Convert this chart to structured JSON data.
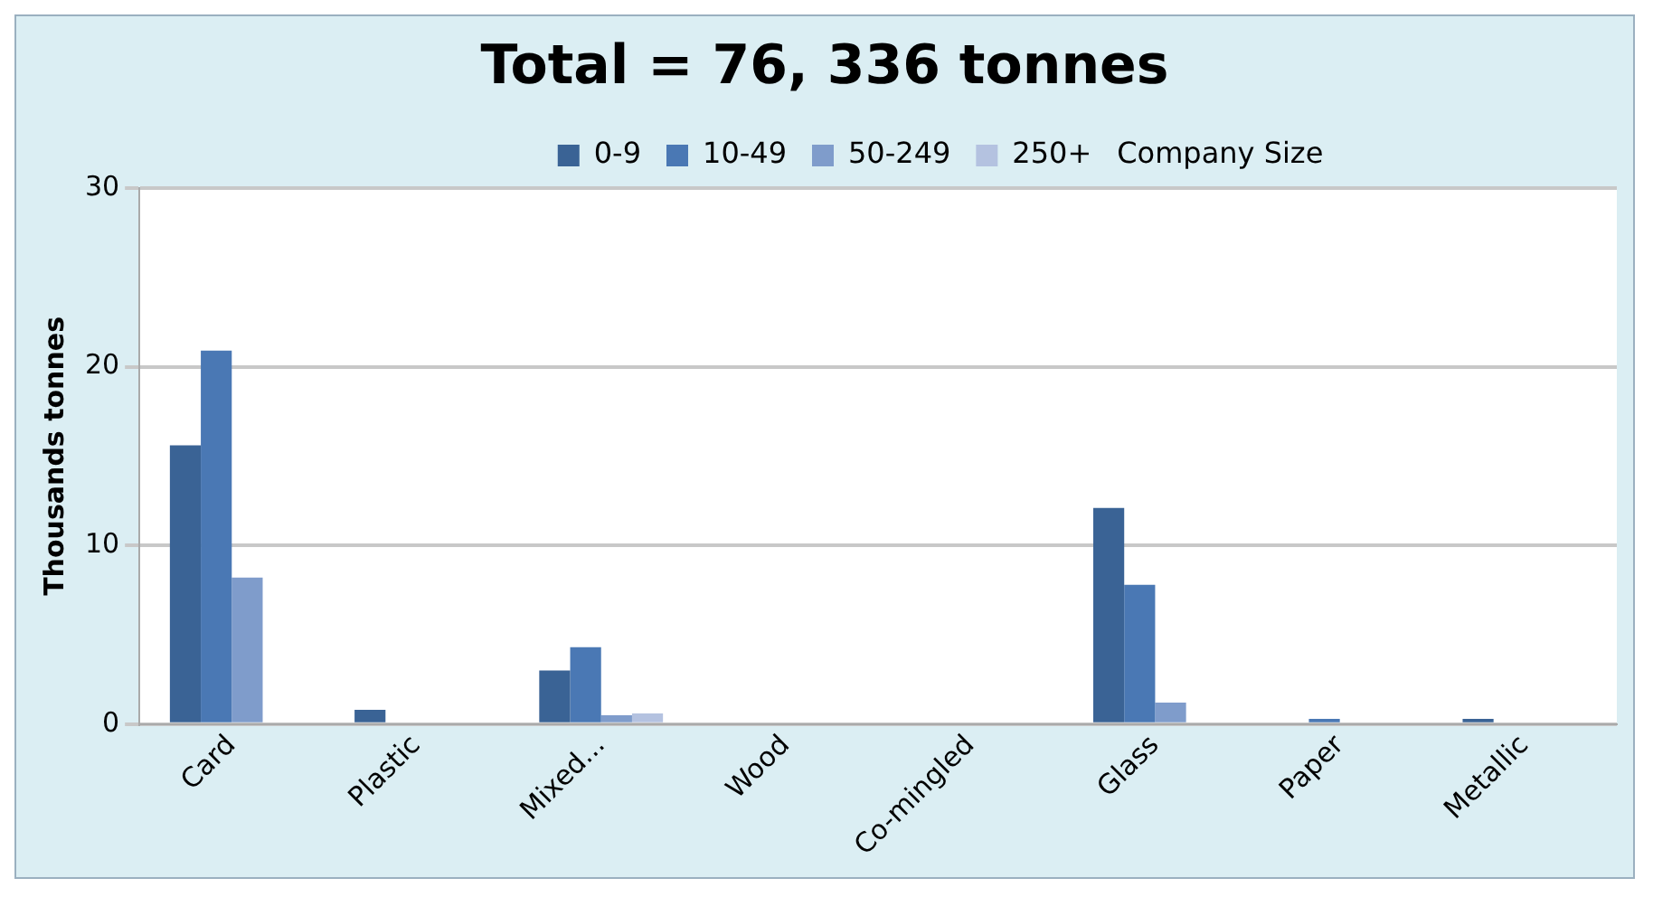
{
  "chart_data": {
    "type": "bar",
    "title": "Total = 76, 336 tonnes",
    "ylabel": "Thousands tonnes",
    "legend_title": "Company Size",
    "categories": [
      "Card",
      "Plastic",
      "Mixed...",
      "Wood",
      "Co-mingled",
      "Glass",
      "Paper",
      "Metallic"
    ],
    "series": [
      {
        "name": "0-9",
        "color": "#3a6395",
        "values": [
          15.6,
          0.8,
          3.0,
          0,
          0,
          12.1,
          0,
          0.3
        ]
      },
      {
        "name": "10-49",
        "color": "#4a78b4",
        "values": [
          20.9,
          0,
          4.3,
          0,
          0,
          7.8,
          0.3,
          0
        ]
      },
      {
        "name": "50-249",
        "color": "#7f9ccb",
        "values": [
          8.2,
          0,
          0.5,
          0,
          0,
          1.2,
          0,
          0
        ]
      },
      {
        "name": "250+",
        "color": "#b4c2e0",
        "values": [
          0,
          0,
          0.6,
          0,
          0,
          0,
          0,
          0
        ]
      }
    ],
    "ylim": [
      0,
      30
    ],
    "yticks": [
      0,
      10,
      20,
      30
    ],
    "grid": "y",
    "legend": "top"
  }
}
